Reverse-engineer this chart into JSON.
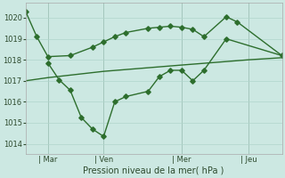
{
  "background_color": "#cce8e2",
  "line_color": "#2d6e2d",
  "grid_color": "#b0d4cc",
  "ylabel": "Pression niveau de la mer( hPa )",
  "ylim": [
    1013.5,
    1020.7
  ],
  "yticks": [
    1014,
    1015,
    1016,
    1017,
    1018,
    1019,
    1020
  ],
  "xtick_labels": [
    "| Mar",
    "| Ven",
    "| Mer",
    "| Jeu"
  ],
  "xtick_positions": [
    2,
    7,
    14,
    20
  ],
  "xlim": [
    0,
    23
  ],
  "line1_x": [
    0,
    1,
    2,
    4,
    6,
    7,
    8,
    9,
    11,
    12,
    13,
    14,
    15,
    16,
    18,
    19,
    23
  ],
  "line1_y": [
    1020.3,
    1019.1,
    1018.15,
    1018.2,
    1018.6,
    1018.85,
    1019.1,
    1019.3,
    1019.5,
    1019.55,
    1019.6,
    1019.55,
    1019.45,
    1019.1,
    1020.05,
    1019.8,
    1018.2
  ],
  "line2_x": [
    2,
    3,
    4,
    5,
    6,
    7,
    8,
    9,
    11,
    12,
    13,
    14,
    15,
    16,
    18,
    23
  ],
  "line2_y": [
    1017.85,
    1017.05,
    1016.55,
    1015.25,
    1014.7,
    1014.35,
    1016.0,
    1016.25,
    1016.5,
    1017.2,
    1017.5,
    1017.5,
    1017.0,
    1017.5,
    1019.0,
    1018.2
  ],
  "line3_x": [
    0,
    2,
    7,
    14,
    20,
    23
  ],
  "line3_y": [
    1017.0,
    1017.15,
    1017.45,
    1017.75,
    1018.0,
    1018.1
  ]
}
